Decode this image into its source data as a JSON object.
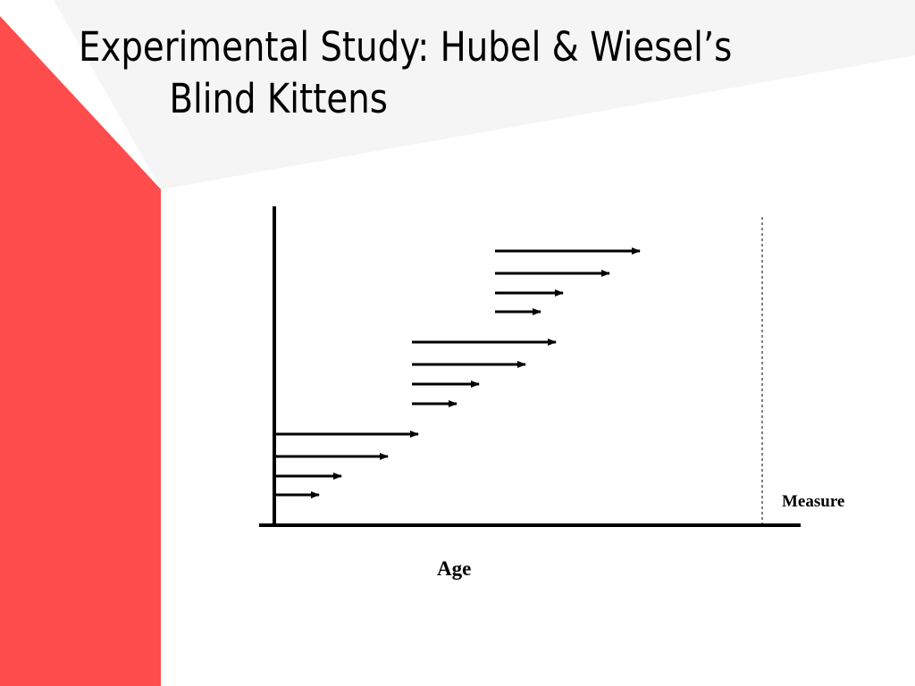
{
  "slide": {
    "title_line1": "Experimental Study: Hubel & Wiesel’s",
    "title_line2": "Blind Kittens"
  },
  "diagram": {
    "x_axis_label": "Age",
    "measure_label": "Measure",
    "colors": {
      "accent_red": "#ff4d4d",
      "header_band": "#f5f5f5",
      "ink": "#000000"
    }
  }
}
